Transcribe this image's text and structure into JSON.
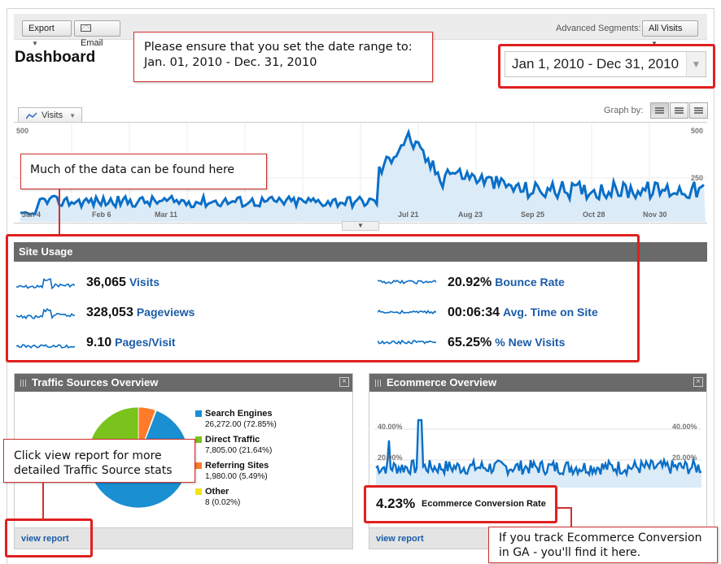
{
  "toolbar": {
    "export_label": "Export",
    "email_label": "Email",
    "segments_label": "Advanced Segments:",
    "segments_value": "All Visits"
  },
  "page_title": "Dashboard",
  "date_range": "Jan 1, 2010 - Dec 31, 2010",
  "callouts": {
    "date_line1": "Please ensure that you set the date range to:",
    "date_line2": "Jan. 01, 2010 - Dec. 31, 2010",
    "data_note": "Much of the data can be found here",
    "traffic_line1": "Click view report for more",
    "traffic_line2": "detailed Traffic Source stats",
    "ecom_line1": "If you track Ecommerce Conversion",
    "ecom_line2": "in GA - you'll find it here."
  },
  "graph": {
    "metric_tab": "Visits",
    "graph_by_label": "Graph by:",
    "y_top_left": "500",
    "y_top_right": "500",
    "y_mid_right": "250",
    "x_labels": [
      "Jan 4",
      "Feb 6",
      "Mar 11",
      "Jul 21",
      "Aug 23",
      "Sep 25",
      "Oct 28",
      "Nov 30"
    ],
    "line_color": "#0a6fc7",
    "fill_color": "#dcebf8"
  },
  "site_usage": {
    "title": "Site Usage",
    "metrics": [
      {
        "value": "36,065",
        "label": "Visits"
      },
      {
        "value": "328,053",
        "label": "Pageviews"
      },
      {
        "value": "9.10",
        "label": "Pages/Visit"
      },
      {
        "value": "20.92%",
        "label": "Bounce Rate"
      },
      {
        "value": "00:06:34",
        "label": "Avg. Time on Site"
      },
      {
        "value": "65.25%",
        "label": "% New Visits"
      }
    ]
  },
  "traffic_sources": {
    "title": "Traffic Sources Overview",
    "view_report": "view report",
    "sources": [
      {
        "name": "Search Engines",
        "value": "26,272.00 (72.85%)",
        "pct": 72.85,
        "color": "#1a8fd1"
      },
      {
        "name": "Direct Traffic",
        "value": "7,805.00 (21.64%)",
        "pct": 21.64,
        "color": "#7ac21c"
      },
      {
        "name": "Referring Sites",
        "value": "1,980.00 (5.49%)",
        "pct": 5.49,
        "color": "#ff7a2a"
      },
      {
        "name": "Other",
        "value": "8 (0.02%)",
        "pct": 0.02,
        "color": "#f5e21a"
      }
    ]
  },
  "ecommerce": {
    "title": "Ecommerce Overview",
    "y_top_left": "40.00%",
    "y_top_right": "40.00%",
    "y_mid_left": "20.00%",
    "y_mid_right": "20.00%",
    "rate_value": "4.23%",
    "rate_label": "Ecommerce Conversion Rate",
    "view_report": "view report"
  }
}
